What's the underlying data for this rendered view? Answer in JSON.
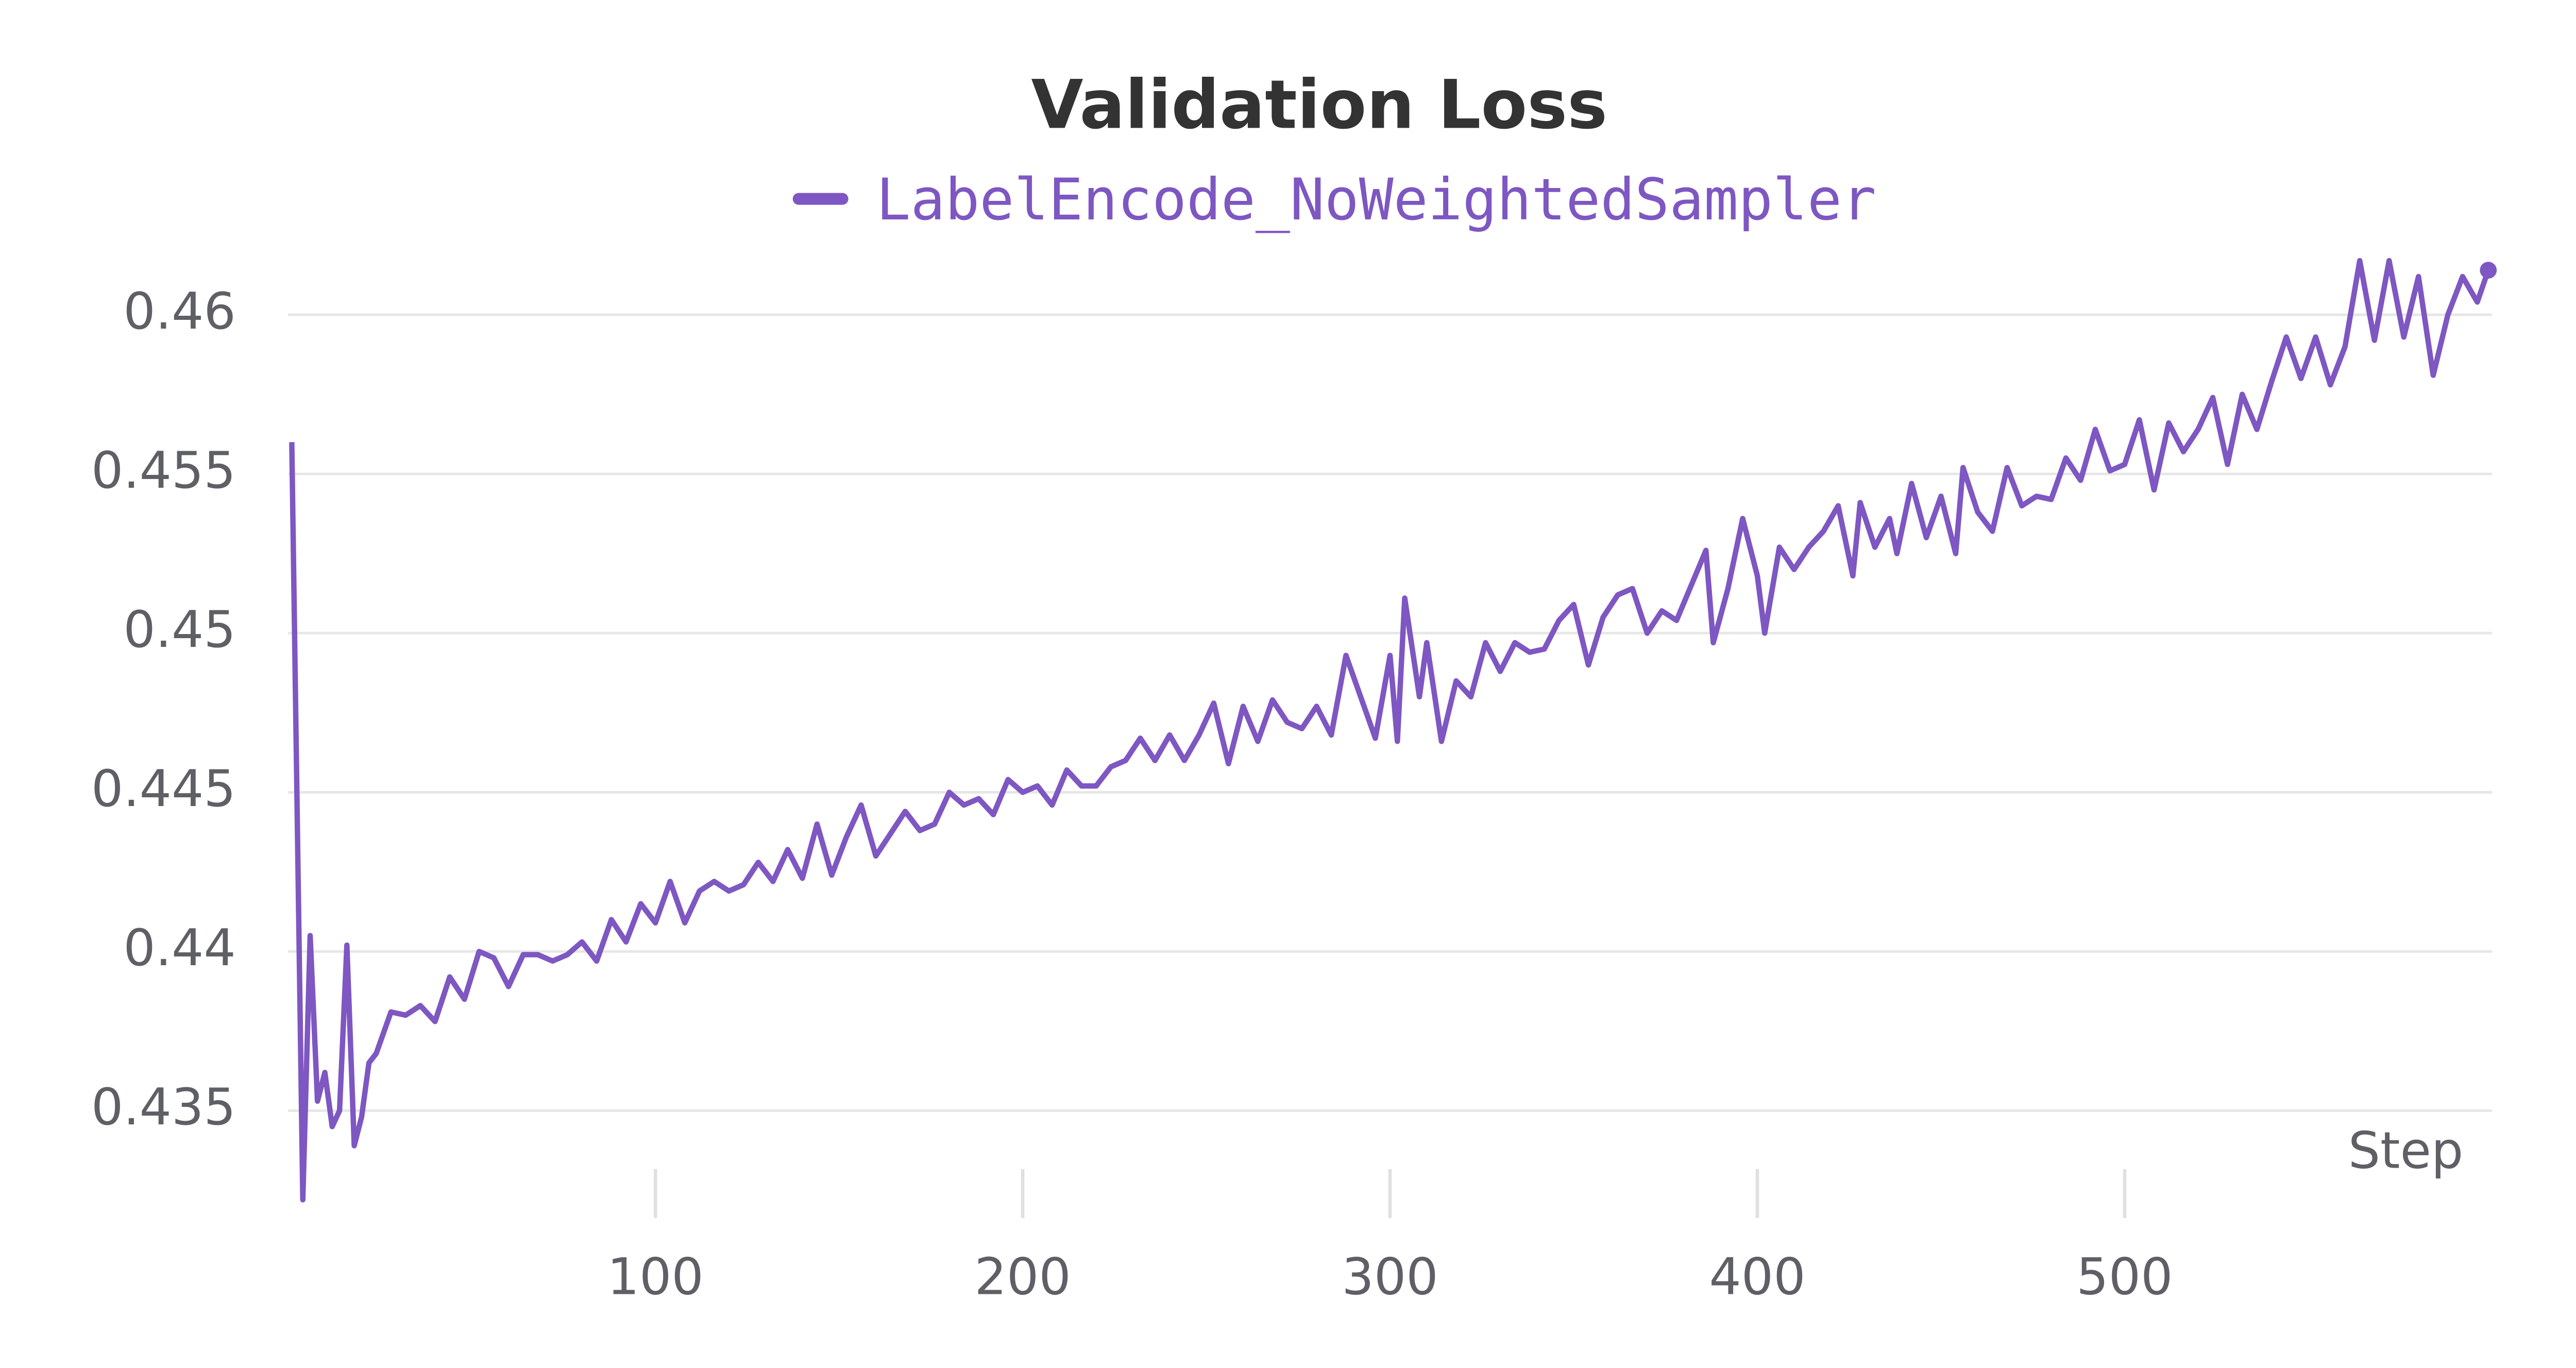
{
  "chart_data": {
    "type": "line",
    "title": "Validation Loss",
    "x_label": "Step",
    "x": [
      1,
      4,
      6,
      8,
      10,
      12,
      14,
      16,
      18,
      20,
      22,
      24,
      28,
      32,
      36,
      40,
      44,
      48,
      52,
      56,
      60,
      64,
      68,
      72,
      76,
      80,
      84,
      88,
      92,
      96,
      100,
      104,
      108,
      112,
      116,
      120,
      124,
      128,
      132,
      136,
      140,
      144,
      148,
      152,
      156,
      160,
      164,
      168,
      172,
      176,
      180,
      184,
      188,
      192,
      196,
      200,
      204,
      208,
      212,
      216,
      220,
      224,
      228,
      232,
      236,
      240,
      244,
      248,
      252,
      256,
      260,
      264,
      268,
      272,
      276,
      280,
      284,
      288,
      292,
      296,
      300,
      302,
      304,
      308,
      310,
      314,
      318,
      322,
      326,
      330,
      334,
      338,
      342,
      346,
      350,
      354,
      358,
      362,
      366,
      370,
      374,
      378,
      382,
      386,
      388,
      392,
      396,
      400,
      402,
      406,
      410,
      414,
      418,
      422,
      426,
      428,
      432,
      436,
      438,
      442,
      446,
      450,
      454,
      456,
      460,
      464,
      468,
      472,
      476,
      480,
      484,
      488,
      492,
      496,
      500,
      504,
      508,
      512,
      516,
      520,
      524,
      528,
      532,
      536,
      540,
      544,
      548,
      552,
      556,
      560,
      564,
      568,
      572,
      576,
      580,
      584,
      588,
      592,
      596,
      599
    ],
    "series": [
      {
        "name": "LabelEncode_NoWeightedSampler",
        "color": "#7e57c2",
        "values": [
          0.456,
          0.4322,
          0.4405,
          0.4353,
          0.4362,
          0.4345,
          0.435,
          0.4402,
          0.4339,
          0.4348,
          0.4365,
          0.4368,
          0.4381,
          0.438,
          0.4383,
          0.4378,
          0.4392,
          0.4385,
          0.44,
          0.4398,
          0.4389,
          0.4399,
          0.4399,
          0.4397,
          0.4399,
          0.4403,
          0.4397,
          0.441,
          0.4403,
          0.4415,
          0.4409,
          0.4422,
          0.4409,
          0.4419,
          0.4422,
          0.4419,
          0.4421,
          0.4428,
          0.4422,
          0.4432,
          0.4423,
          0.444,
          0.4424,
          0.4436,
          0.4446,
          0.443,
          0.4437,
          0.4444,
          0.4438,
          0.444,
          0.445,
          0.4446,
          0.4448,
          0.4443,
          0.4454,
          0.445,
          0.4452,
          0.4446,
          0.4457,
          0.4452,
          0.4452,
          0.4458,
          0.446,
          0.4467,
          0.446,
          0.4468,
          0.446,
          0.4468,
          0.4478,
          0.4459,
          0.4477,
          0.4466,
          0.4479,
          0.4472,
          0.447,
          0.4477,
          0.4468,
          0.4493,
          0.448,
          0.4467,
          0.4493,
          0.4466,
          0.4511,
          0.448,
          0.4497,
          0.4466,
          0.4485,
          0.448,
          0.4497,
          0.4488,
          0.4497,
          0.4494,
          0.4495,
          0.4504,
          0.4509,
          0.449,
          0.4505,
          0.4512,
          0.4514,
          0.45,
          0.4507,
          0.4504,
          0.4515,
          0.4526,
          0.4497,
          0.4514,
          0.4536,
          0.4518,
          0.45,
          0.4527,
          0.452,
          0.4527,
          0.4532,
          0.454,
          0.4518,
          0.4541,
          0.4527,
          0.4536,
          0.4525,
          0.4547,
          0.453,
          0.4543,
          0.4525,
          0.4552,
          0.4538,
          0.4532,
          0.4552,
          0.454,
          0.4543,
          0.4542,
          0.4555,
          0.4548,
          0.4564,
          0.4551,
          0.4553,
          0.4567,
          0.4545,
          0.4566,
          0.4557,
          0.4564,
          0.4574,
          0.4553,
          0.4575,
          0.4564,
          0.4579,
          0.4593,
          0.458,
          0.4593,
          0.4578,
          0.459,
          0.4617,
          0.4592,
          0.4617,
          0.4593,
          0.4612,
          0.4581,
          0.46,
          0.4612,
          0.4604,
          0.4614
        ]
      }
    ],
    "xlim": [
      0,
      600
    ],
    "ylim": [
      0.432,
      0.462
    ],
    "xticks": [
      100,
      200,
      300,
      400,
      500
    ],
    "yticks": [
      0.435,
      0.44,
      0.445,
      0.45,
      0.455,
      0.46
    ],
    "grid": true
  }
}
